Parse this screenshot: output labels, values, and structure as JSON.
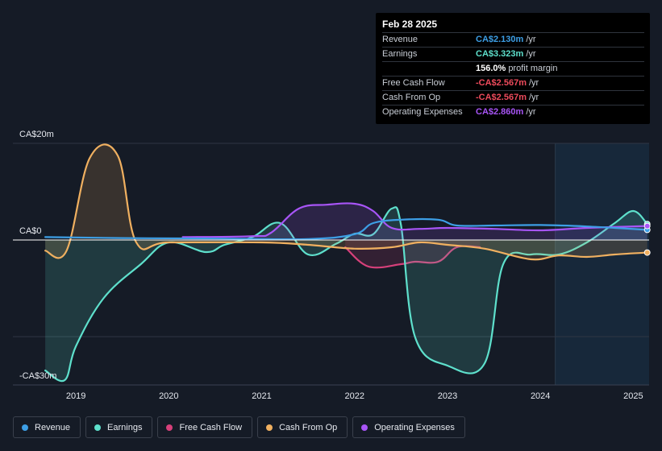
{
  "tooltip": {
    "date": "Feb 28 2025",
    "rows": [
      {
        "label": "Revenue",
        "value": "CA$2.130m",
        "unit": "/yr",
        "color": "#3d9fe6"
      },
      {
        "label": "Earnings",
        "value": "CA$3.323m",
        "unit": "/yr",
        "color": "#5ee0cc"
      },
      {
        "label": "",
        "value": "156.0%",
        "unit": "profit margin",
        "color": "#ffffff"
      },
      {
        "label": "Free Cash Flow",
        "value": "-CA$2.567m",
        "unit": "/yr",
        "color": "#ee4b5c"
      },
      {
        "label": "Cash From Op",
        "value": "-CA$2.567m",
        "unit": "/yr",
        "color": "#ee4b5c"
      },
      {
        "label": "Operating Expenses",
        "value": "CA$2.860m",
        "unit": "/yr",
        "color": "#a855f7"
      }
    ]
  },
  "chart_data": {
    "type": "line",
    "title": "",
    "xlabel": "",
    "ylabel": "",
    "ylim": [
      -30,
      20
    ],
    "yticks": [
      {
        "value": 20,
        "label": "CA$20m"
      },
      {
        "value": 0,
        "label": "CA$0"
      },
      {
        "value": -30,
        "label": "-CA$30m"
      }
    ],
    "xlim": [
      2018.6,
      2025.17
    ],
    "xticks": [
      {
        "value": 2019,
        "label": "2019"
      },
      {
        "value": 2020,
        "label": "2020"
      },
      {
        "value": 2021,
        "label": "2021"
      },
      {
        "value": 2022,
        "label": "2022"
      },
      {
        "value": 2023,
        "label": "2023"
      },
      {
        "value": 2024,
        "label": "2024"
      },
      {
        "value": 2025,
        "label": "2025"
      }
    ],
    "forecast_start": 2024.16,
    "series": [
      {
        "name": "Revenue",
        "color": "#3d9fe6",
        "fill": false,
        "points": [
          [
            2018.67,
            0.6
          ],
          [
            2019.5,
            0.4
          ],
          [
            2020.5,
            0.3
          ],
          [
            2021.5,
            0.2
          ],
          [
            2022.0,
            1.2
          ],
          [
            2022.2,
            3.5
          ],
          [
            2022.5,
            4.2
          ],
          [
            2022.9,
            4.2
          ],
          [
            2023.1,
            3.0
          ],
          [
            2023.5,
            3.0
          ],
          [
            2024.0,
            3.1
          ],
          [
            2024.5,
            2.8
          ],
          [
            2025.15,
            2.1
          ]
        ]
      },
      {
        "name": "Earnings",
        "color": "#5ee0cc",
        "fill": true,
        "points": [
          [
            2018.67,
            -27
          ],
          [
            2018.88,
            -29
          ],
          [
            2019.0,
            -22
          ],
          [
            2019.3,
            -12
          ],
          [
            2019.7,
            -5
          ],
          [
            2020.0,
            -0.5
          ],
          [
            2020.4,
            -2.5
          ],
          [
            2020.6,
            -1
          ],
          [
            2020.9,
            0.6
          ],
          [
            2021.2,
            3.5
          ],
          [
            2021.5,
            -3
          ],
          [
            2021.8,
            -0.8
          ],
          [
            2022.0,
            1.3
          ],
          [
            2022.2,
            1.2
          ],
          [
            2022.4,
            6.5
          ],
          [
            2022.5,
            3
          ],
          [
            2022.65,
            -20
          ],
          [
            2023.0,
            -26
          ],
          [
            2023.4,
            -25.5
          ],
          [
            2023.6,
            -5
          ],
          [
            2023.9,
            -3
          ],
          [
            2024.2,
            -3
          ],
          [
            2024.5,
            -0.5
          ],
          [
            2024.8,
            3.5
          ],
          [
            2025.0,
            6
          ],
          [
            2025.15,
            3.3
          ]
        ]
      },
      {
        "name": "Free Cash Flow",
        "color": "#d6407a",
        "fill": true,
        "points": [
          [
            2021.9,
            -1.5
          ],
          [
            2022.15,
            -5.5
          ],
          [
            2022.5,
            -5
          ],
          [
            2022.65,
            -4.5
          ],
          [
            2022.9,
            -4.5
          ],
          [
            2023.1,
            -1.5
          ],
          [
            2023.35,
            -1.5
          ]
        ]
      },
      {
        "name": "Cash From Op",
        "color": "#f0b060",
        "fill": true,
        "points": [
          [
            2018.67,
            -2.2
          ],
          [
            2018.9,
            -2.2
          ],
          [
            2019.15,
            17
          ],
          [
            2019.45,
            17.5
          ],
          [
            2019.65,
            -0.5
          ],
          [
            2020.0,
            -0.5
          ],
          [
            2021.0,
            -0.5
          ],
          [
            2021.5,
            -1
          ],
          [
            2022.0,
            -1.8
          ],
          [
            2022.4,
            -1.5
          ],
          [
            2022.7,
            -0.5
          ],
          [
            2023.0,
            -1
          ],
          [
            2023.4,
            -1.8
          ],
          [
            2023.9,
            -4
          ],
          [
            2024.2,
            -3.2
          ],
          [
            2024.5,
            -3.5
          ],
          [
            2024.8,
            -3
          ],
          [
            2025.15,
            -2.6
          ]
        ]
      },
      {
        "name": "Operating Expenses",
        "color": "#a855f7",
        "fill": true,
        "points": [
          [
            2020.15,
            0.6
          ],
          [
            2020.9,
            0.8
          ],
          [
            2021.1,
            1.5
          ],
          [
            2021.4,
            6.5
          ],
          [
            2021.7,
            7.3
          ],
          [
            2022.0,
            7.5
          ],
          [
            2022.2,
            6
          ],
          [
            2022.4,
            2.5
          ],
          [
            2022.7,
            2.3
          ],
          [
            2023.0,
            2.5
          ],
          [
            2023.5,
            2.3
          ],
          [
            2024.0,
            2
          ],
          [
            2024.5,
            2.5
          ],
          [
            2025.15,
            2.9
          ]
        ]
      }
    ]
  },
  "legend": [
    {
      "label": "Revenue",
      "color": "#3d9fe6"
    },
    {
      "label": "Earnings",
      "color": "#5ee0cc"
    },
    {
      "label": "Free Cash Flow",
      "color": "#d6407a"
    },
    {
      "label": "Cash From Op",
      "color": "#f0b060"
    },
    {
      "label": "Operating Expenses",
      "color": "#a855f7"
    }
  ]
}
